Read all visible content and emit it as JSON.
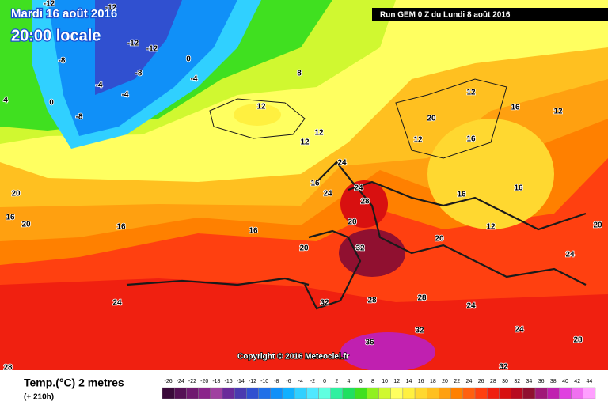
{
  "header": {
    "date": "Mardi 16 août 2016",
    "time": "20:00 locale",
    "run": "Run GEM 0 Z du Lundi 8 août 2016",
    "copyright": "Copyright © 2016 Meteociel.fr"
  },
  "legend": {
    "title": "Temp.(°C) 2 metres",
    "lead": "(+ 210h)",
    "ticks": [
      -26,
      -24,
      -22,
      -20,
      -18,
      -16,
      -14,
      -12,
      -10,
      -8,
      -6,
      -4,
      -2,
      0,
      2,
      4,
      6,
      8,
      10,
      12,
      14,
      16,
      18,
      20,
      22,
      24,
      26,
      28,
      30,
      32,
      34,
      36,
      38,
      40,
      42,
      44
    ],
    "colors": [
      "#3a0a3a",
      "#551055",
      "#701a70",
      "#8a248a",
      "#a040a0",
      "#6a2a9a",
      "#4a3ab0",
      "#3050d0",
      "#2070e8",
      "#1090f8",
      "#10b0ff",
      "#30d0ff",
      "#50e8ff",
      "#60ffe0",
      "#30f0a0",
      "#20e060",
      "#40e020",
      "#90f020",
      "#d0f830",
      "#ffff60",
      "#fff040",
      "#ffd830",
      "#ffc020",
      "#ffa010",
      "#ff8000",
      "#ff6010",
      "#ff4010",
      "#f02010",
      "#d81010",
      "#b80a20",
      "#901030",
      "#a01878",
      "#c020b0",
      "#e040e0",
      "#f070f0",
      "#ffa0ff"
    ]
  },
  "map_labels": [
    -12,
    -12,
    -12,
    -12,
    -8,
    -8,
    -4,
    0,
    -4,
    -4,
    -8,
    4,
    0,
    8,
    12,
    12,
    12,
    20,
    12,
    16,
    12,
    12,
    16,
    24,
    16,
    24,
    24,
    28,
    20,
    16,
    16,
    20,
    16,
    20,
    16,
    16,
    20,
    32,
    20,
    12,
    24,
    32,
    28,
    28,
    24,
    24,
    36,
    32,
    28,
    32,
    24,
    20,
    28
  ]
}
